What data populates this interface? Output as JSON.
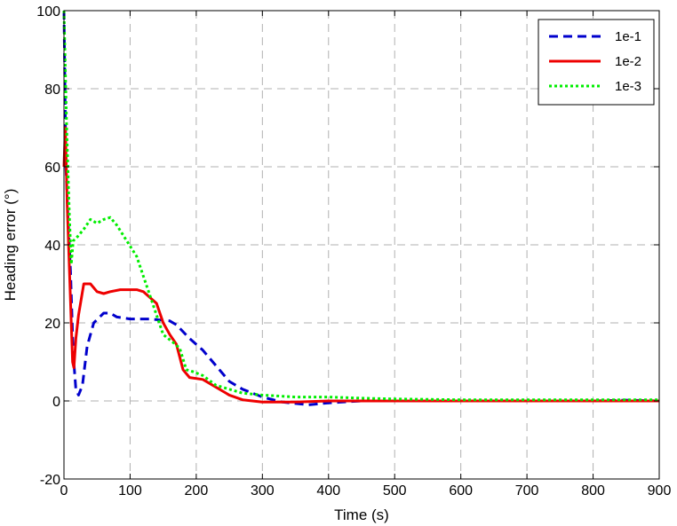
{
  "chart_data": {
    "type": "line",
    "title": "",
    "xlabel": "Time (s)",
    "ylabel": "Heading error (°)",
    "xlim": [
      0,
      900
    ],
    "ylim": [
      -20,
      100
    ],
    "xticks": [
      "0",
      "100",
      "200",
      "300",
      "400",
      "500",
      "600",
      "700",
      "800",
      "900"
    ],
    "yticks": [
      "-20",
      "0",
      "20",
      "40",
      "60",
      "80",
      "100"
    ],
    "grid": true,
    "legend_position": "top-right",
    "series": [
      {
        "name": "1e-1",
        "color": "#0000cc",
        "style": "dashed",
        "points": [
          [
            0,
            100
          ],
          [
            3,
            60
          ],
          [
            6,
            47
          ],
          [
            10,
            33
          ],
          [
            14,
            12
          ],
          [
            18,
            3
          ],
          [
            22,
            1.5
          ],
          [
            28,
            4
          ],
          [
            35,
            14
          ],
          [
            45,
            20
          ],
          [
            60,
            22.5
          ],
          [
            70,
            22.5
          ],
          [
            80,
            21.5
          ],
          [
            100,
            21
          ],
          [
            130,
            21
          ],
          [
            160,
            20.5
          ],
          [
            170,
            19.5
          ],
          [
            190,
            16
          ],
          [
            210,
            13
          ],
          [
            230,
            9
          ],
          [
            250,
            5
          ],
          [
            270,
            3
          ],
          [
            300,
            1
          ],
          [
            330,
            -0.3
          ],
          [
            370,
            -1
          ],
          [
            400,
            -0.5
          ],
          [
            450,
            0
          ],
          [
            500,
            0
          ],
          [
            600,
            0
          ],
          [
            700,
            0
          ],
          [
            800,
            0
          ],
          [
            850,
            0.2
          ],
          [
            900,
            0
          ]
        ]
      },
      {
        "name": "1e-2",
        "color": "#ee0000",
        "style": "solid",
        "points": [
          [
            0,
            60
          ],
          [
            2,
            70
          ],
          [
            5,
            50
          ],
          [
            9,
            30
          ],
          [
            13,
            10
          ],
          [
            15,
            8.5
          ],
          [
            18,
            16
          ],
          [
            22,
            22
          ],
          [
            30,
            30
          ],
          [
            40,
            30
          ],
          [
            50,
            28
          ],
          [
            60,
            27.5
          ],
          [
            70,
            28
          ],
          [
            85,
            28.5
          ],
          [
            110,
            28.5
          ],
          [
            120,
            28
          ],
          [
            140,
            25
          ],
          [
            150,
            20
          ],
          [
            160,
            17
          ],
          [
            170,
            14.5
          ],
          [
            180,
            8
          ],
          [
            190,
            6
          ],
          [
            210,
            5.5
          ],
          [
            230,
            3.5
          ],
          [
            250,
            1.5
          ],
          [
            270,
            0.3
          ],
          [
            300,
            -0.3
          ],
          [
            350,
            -0.3
          ],
          [
            400,
            0
          ],
          [
            500,
            0
          ],
          [
            600,
            0
          ],
          [
            700,
            0
          ],
          [
            800,
            0
          ],
          [
            900,
            0
          ]
        ]
      },
      {
        "name": "1e-3",
        "color": "#00ee00",
        "style": "dotted",
        "points": [
          [
            0,
            100
          ],
          [
            4,
            70
          ],
          [
            8,
            48
          ],
          [
            11,
            35
          ],
          [
            14,
            41
          ],
          [
            20,
            42
          ],
          [
            30,
            44
          ],
          [
            40,
            46.5
          ],
          [
            50,
            45.5
          ],
          [
            60,
            46.5
          ],
          [
            70,
            47
          ],
          [
            80,
            45
          ],
          [
            95,
            41
          ],
          [
            110,
            37
          ],
          [
            120,
            32
          ],
          [
            130,
            27
          ],
          [
            140,
            22
          ],
          [
            150,
            17
          ],
          [
            165,
            15
          ],
          [
            175,
            13.5
          ],
          [
            185,
            8
          ],
          [
            195,
            7.5
          ],
          [
            210,
            6.5
          ],
          [
            230,
            4
          ],
          [
            250,
            3
          ],
          [
            270,
            2
          ],
          [
            300,
            1.5
          ],
          [
            350,
            1
          ],
          [
            400,
            1
          ],
          [
            450,
            0.7
          ],
          [
            500,
            0.5
          ],
          [
            600,
            0.3
          ],
          [
            700,
            0.3
          ],
          [
            800,
            0.3
          ],
          [
            900,
            0.3
          ]
        ]
      }
    ]
  }
}
